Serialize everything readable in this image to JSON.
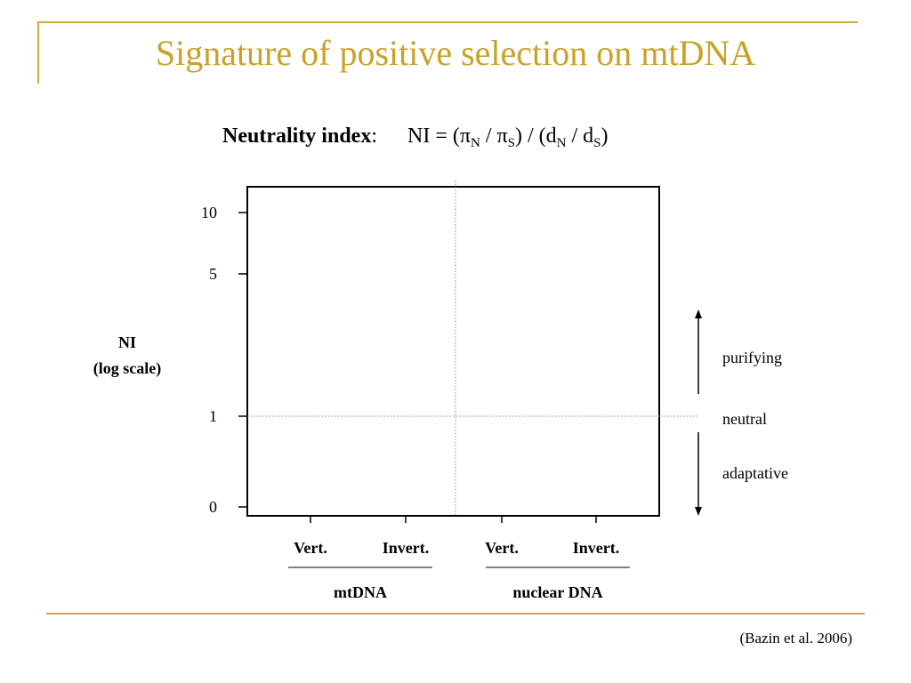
{
  "slide": {
    "title": "Signature of positive selection on mtDNA",
    "citation": "(Bazin et al. 2006)"
  },
  "formula": {
    "label": "Neutrality index",
    "colon": ":",
    "lhs": "NI = (",
    "pi": "π",
    "sub_n": "N",
    "slash": " / ",
    "sub_s": "S",
    "mid": ") / (d",
    "d": "d",
    "close": ")"
  },
  "colors": {
    "accent": "#c9a227",
    "rule": "#d4a93a",
    "text": "#000000"
  },
  "chart_data": {
    "type": "scatter",
    "title": "",
    "ylabel": [
      "NI",
      "(log scale)"
    ],
    "yscale": "log",
    "yticks": [
      {
        "value": 0,
        "label": "0"
      },
      {
        "value": 1,
        "label": "1"
      },
      {
        "value": 5,
        "label": "5"
      },
      {
        "value": 10,
        "label": "10"
      }
    ],
    "categories": [
      "Vert.",
      "Invert.",
      "Vert.",
      "Invert."
    ],
    "groups": [
      {
        "label": "mtDNA",
        "categories": [
          "Vert.",
          "Invert."
        ]
      },
      {
        "label": "nuclear DNA",
        "categories": [
          "Vert.",
          "Invert."
        ]
      }
    ],
    "reference_line": {
      "value": 1,
      "label": "neutral"
    },
    "regions": {
      "above": "purifying",
      "neutral": "neutral",
      "below": "adaptative"
    },
    "series": [],
    "grid": false
  }
}
